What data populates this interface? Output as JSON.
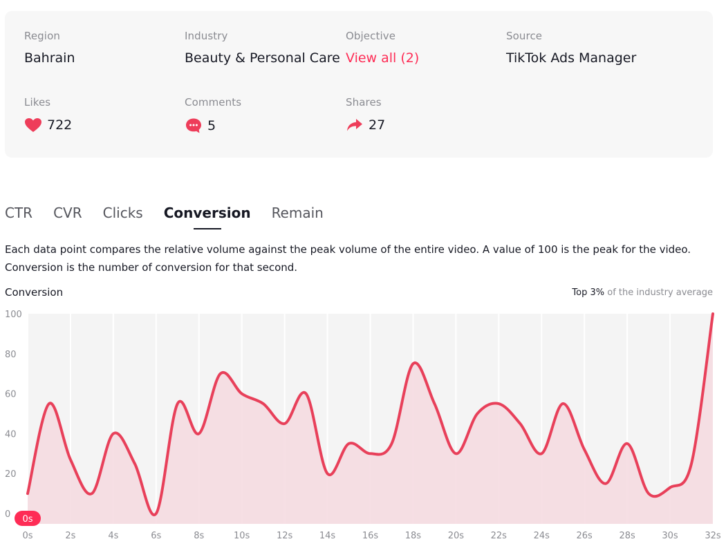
{
  "info": {
    "region_label": "Region",
    "region": "Bahrain",
    "industry_label": "Industry",
    "industry": "Beauty & Personal Care",
    "objective_label": "Objective",
    "objective": "View all (2)",
    "source_label": "Source",
    "source": "TikTok Ads Manager",
    "likes_label": "Likes",
    "likes": "722",
    "comments_label": "Comments",
    "comments": "5",
    "shares_label": "Shares",
    "shares": "27"
  },
  "tabs": [
    "CTR",
    "CVR",
    "Clicks",
    "Conversion",
    "Remain"
  ],
  "active_tab": "Conversion",
  "description_line1": "Each data point compares the relative volume against the peak volume of the entire video. A value of 100 is the peak for the video.",
  "description_line2": "Conversion is the number of conversion for that second.",
  "chart_heading": "Conversion",
  "chart_note_strong": "Top 3%",
  "chart_note_rest": " of the industry average",
  "colors": {
    "accent": "#fe2c55",
    "line": "#e8405a",
    "fill": "#f5dbe1"
  },
  "icons": {
    "likes": "heart-icon",
    "comments": "comment-bubble-icon",
    "shares": "share-arrow-icon"
  },
  "chart_data": {
    "type": "area",
    "ylim": [
      0,
      100
    ],
    "yticks": [
      0,
      20,
      40,
      60,
      80,
      100
    ],
    "xticks": [
      "0s",
      "2s",
      "4s",
      "6s",
      "8s",
      "10s",
      "12s",
      "14s",
      "16s",
      "18s",
      "20s",
      "22s",
      "24s",
      "26s",
      "28s",
      "30s",
      "32s"
    ],
    "highlight_label": "0s",
    "x": [
      0,
      1,
      2,
      3,
      4,
      5,
      6,
      7,
      8,
      9,
      10,
      11,
      12,
      13,
      14,
      15,
      16,
      17,
      18,
      19,
      20,
      21,
      22,
      23,
      24,
      25,
      26,
      27,
      28,
      29,
      30,
      31,
      32
    ],
    "values": [
      10,
      55,
      27,
      10,
      40,
      25,
      0,
      55,
      40,
      70,
      60,
      55,
      45,
      60,
      20,
      35,
      30,
      35,
      75,
      55,
      30,
      50,
      55,
      45,
      30,
      55,
      32,
      15,
      35,
      10,
      13,
      25,
      100
    ]
  }
}
